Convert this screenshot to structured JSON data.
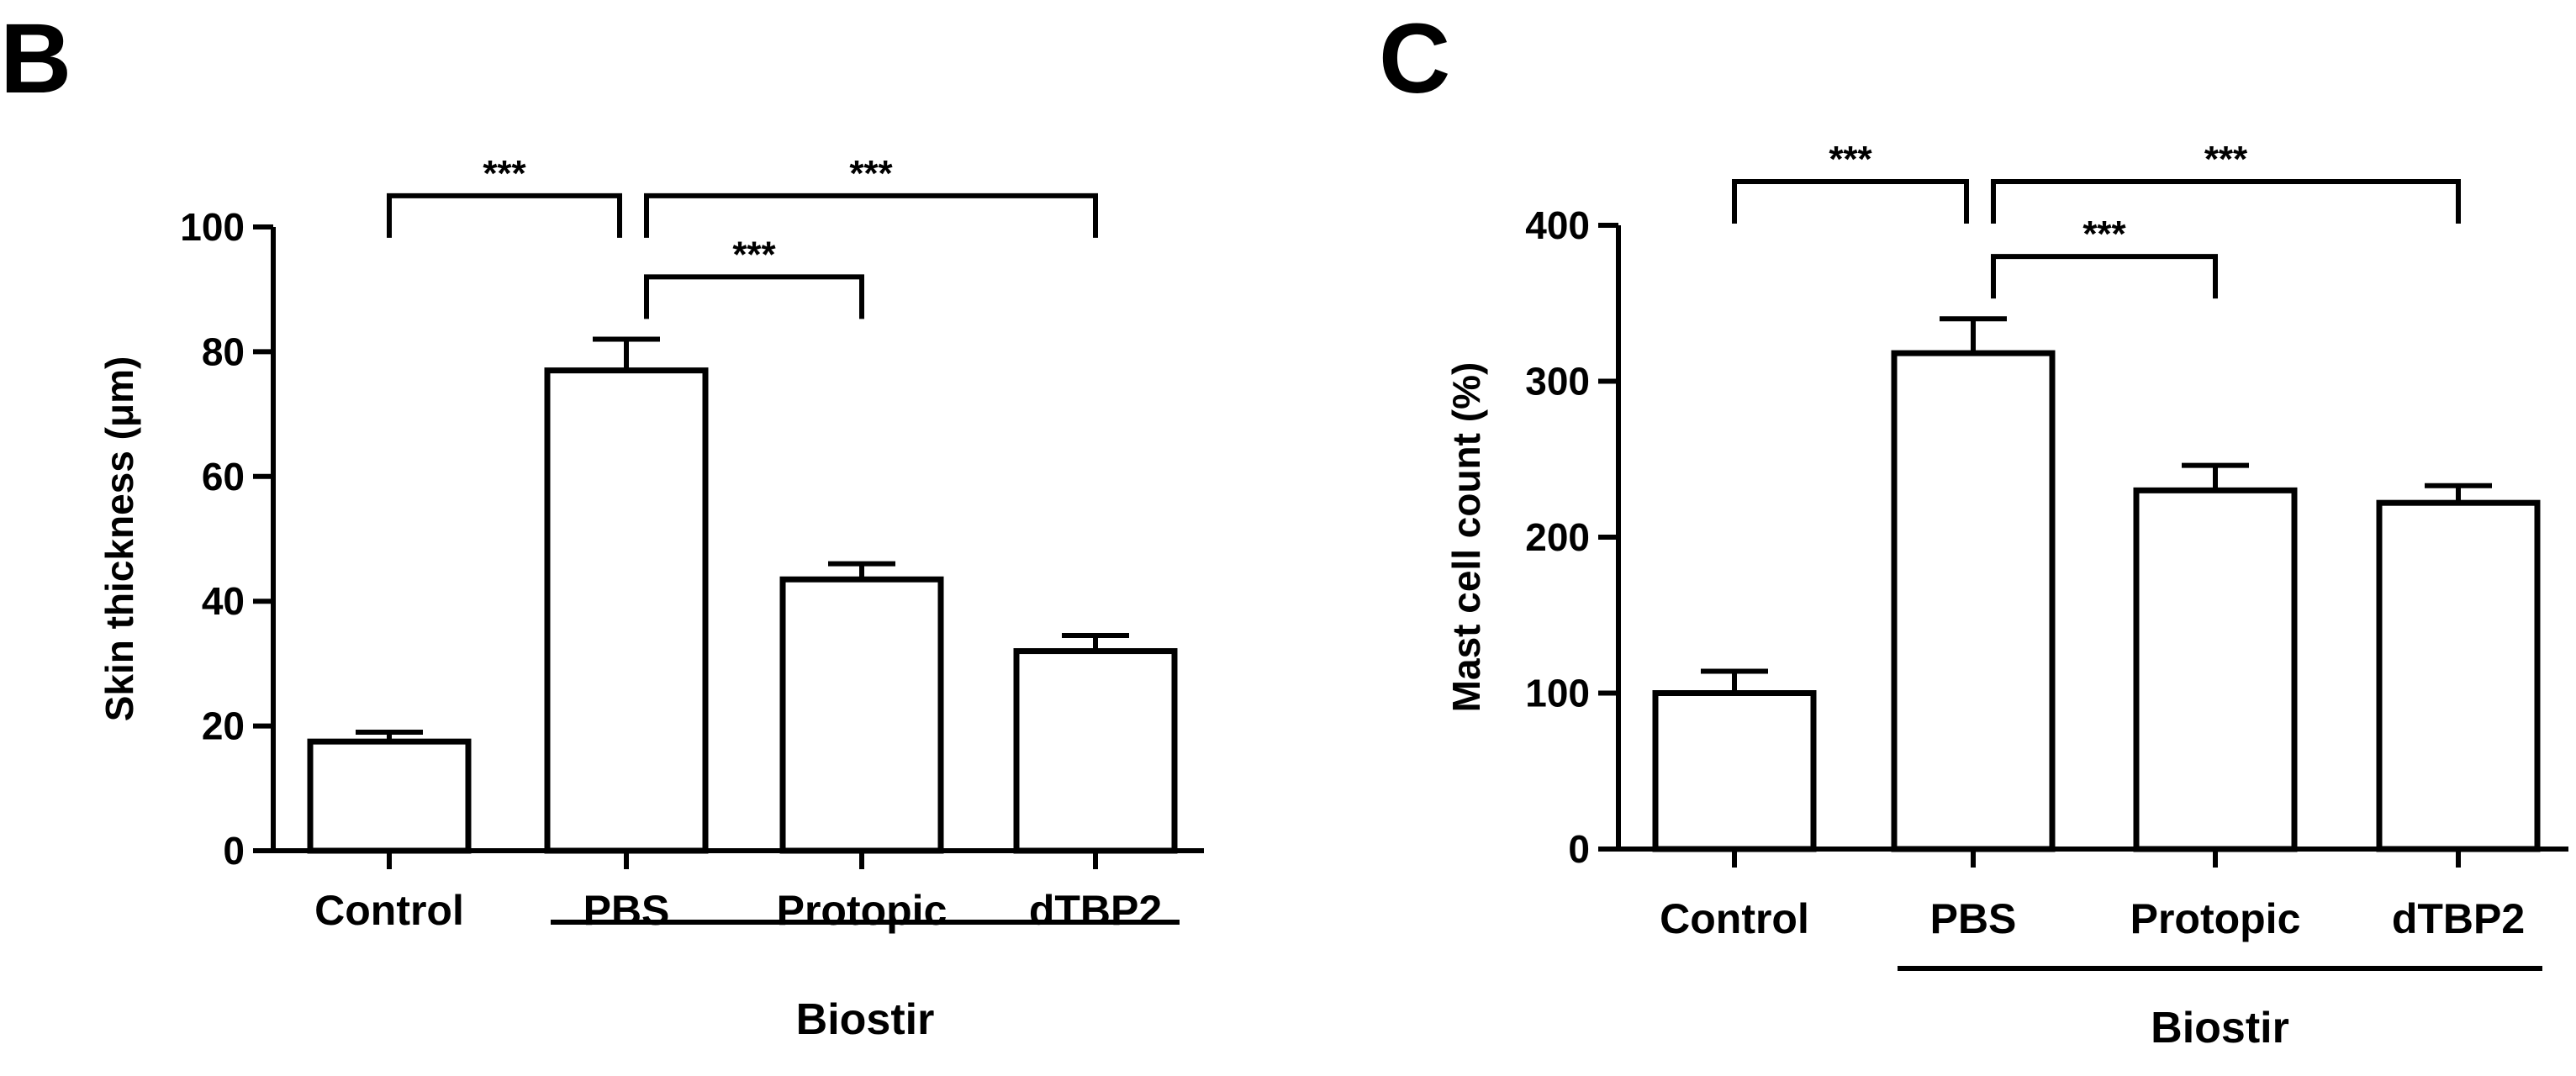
{
  "chart_data": [
    {
      "type": "bar",
      "panel": "B",
      "categories": [
        "Control",
        "PBS",
        "Protopic",
        "dTBP2"
      ],
      "values": [
        17.5,
        77,
        43.5,
        32
      ],
      "errors": [
        1.5,
        5,
        2.5,
        2.5
      ],
      "ylabel": "Skin thickness (μm)",
      "ylim": [
        0,
        100
      ],
      "yticks": [
        0,
        20,
        40,
        60,
        80,
        100
      ],
      "ytick_labels": [
        "0",
        "20",
        "40",
        "60",
        "80",
        "100"
      ],
      "group_label": {
        "text": "Biostir",
        "from_category": 1,
        "to_category": 3
      },
      "significance": [
        {
          "from": 0,
          "to": 1,
          "label": "***",
          "level": 105
        },
        {
          "from": 1,
          "to": 3,
          "label": "***",
          "level": 105
        },
        {
          "from": 1,
          "to": 2,
          "label": "***",
          "level": 92
        }
      ]
    },
    {
      "type": "bar",
      "panel": "C",
      "categories": [
        "Control",
        "PBS",
        "Protopic",
        "dTBP2"
      ],
      "values": [
        100,
        318,
        230,
        222
      ],
      "errors": [
        14,
        22,
        16,
        11
      ],
      "ylabel": "Mast cell count (%)",
      "ylim": [
        0,
        400
      ],
      "yticks": [
        0,
        100,
        200,
        300,
        400
      ],
      "ytick_labels": [
        "0",
        "100",
        "200",
        "300",
        "400"
      ],
      "group_label": {
        "text": "Biostir",
        "from_category": 1,
        "to_category": 3
      },
      "significance": [
        {
          "from": 0,
          "to": 1,
          "label": "***",
          "level": 428
        },
        {
          "from": 1,
          "to": 3,
          "label": "***",
          "level": 428
        },
        {
          "from": 1,
          "to": 2,
          "label": "***",
          "level": 380
        }
      ]
    }
  ]
}
